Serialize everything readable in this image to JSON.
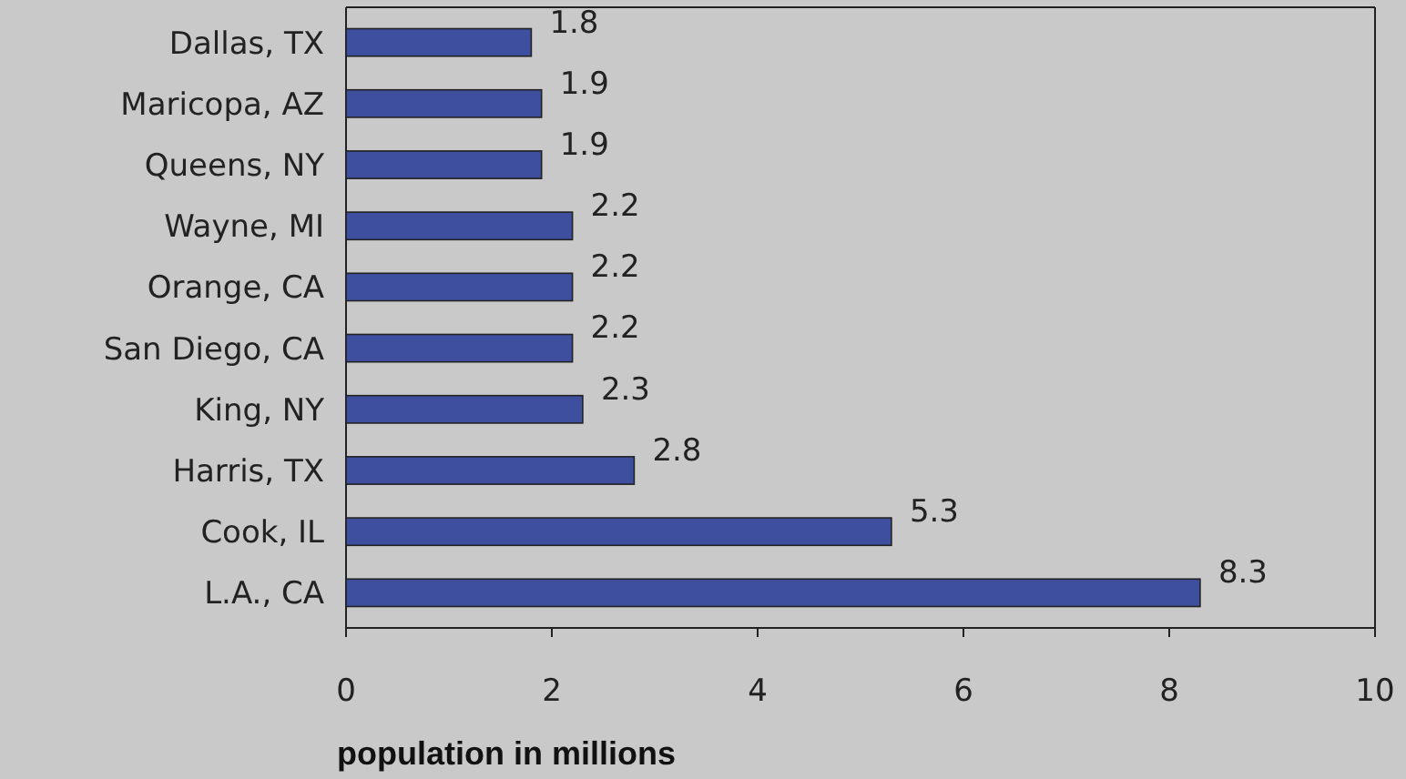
{
  "chart_data": {
    "type": "bar",
    "orientation": "horizontal",
    "categories": [
      "Dallas, TX",
      "Maricopa, AZ",
      "Queens, NY",
      "Wayne, MI",
      "Orange, CA",
      "San Diego, CA",
      "King, NY",
      "Harris, TX",
      "Cook, IL",
      "L.A., CA"
    ],
    "values": [
      1.8,
      1.9,
      1.9,
      2.2,
      2.2,
      2.2,
      2.3,
      2.8,
      5.3,
      8.3
    ],
    "color": "#3d4f9e",
    "data_labels": true,
    "xlim": [
      0,
      10
    ],
    "xticks": [
      0,
      2,
      4,
      6,
      8,
      10
    ],
    "xlabel": "population in millions",
    "grid": false
  }
}
